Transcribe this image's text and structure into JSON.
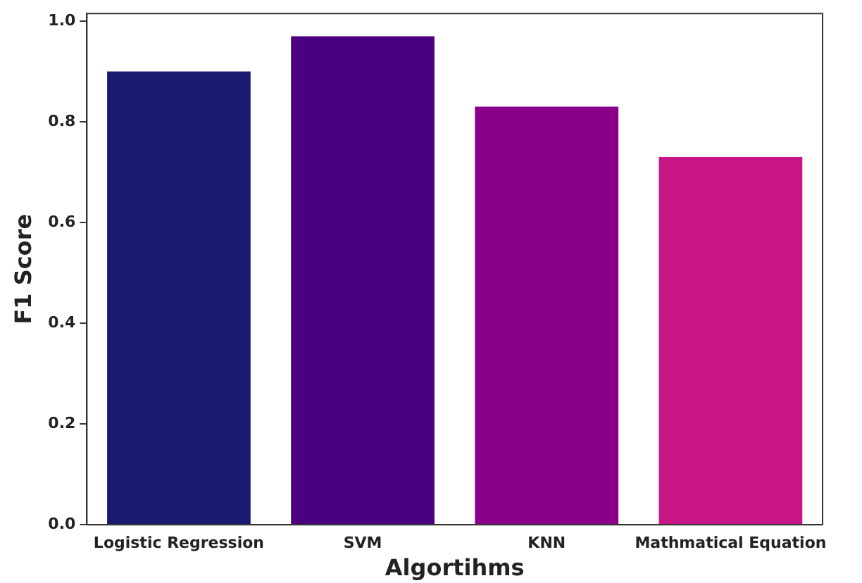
{
  "chart_data": {
    "type": "bar",
    "xlabel": "Algortihms",
    "ylabel": "F1 Score",
    "categories": [
      "Logistic Regression",
      "SVM",
      "KNN",
      "Mathmatical Equation"
    ],
    "values": [
      0.9,
      0.97,
      0.83,
      0.73
    ],
    "colors": [
      "#191970",
      "#4b0082",
      "#8b008b",
      "#c71585"
    ],
    "ylim": [
      0,
      1.015
    ],
    "yticks": [
      {
        "value": 0,
        "label": "0.0"
      },
      0.2,
      0.4,
      0.6,
      0.8,
      {
        "value": 1,
        "label": "1.0"
      }
    ],
    "grid": false,
    "legend": false
  }
}
